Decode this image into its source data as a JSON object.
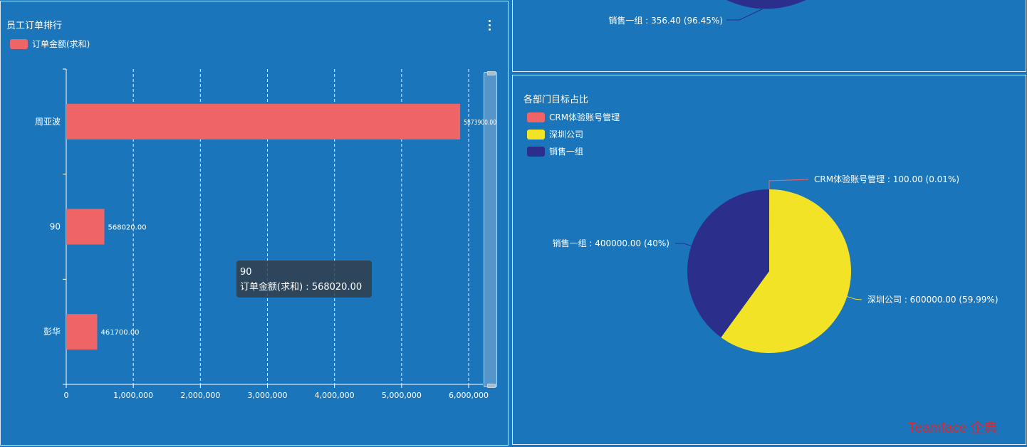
{
  "watermark": "Teamface 企典",
  "bar_panel": {
    "title": "员工订单排行",
    "legend_label": "订单金额(求和)",
    "legend_color": "#ef6567",
    "tooltip": {
      "name": "90",
      "series": "订单金额(求和)",
      "value_text": "568020.00"
    }
  },
  "pie_panel": {
    "title": "各部门目标占比",
    "legend": [
      {
        "label": "CRM体验账号管理",
        "color": "#ef6567"
      },
      {
        "label": "深圳公司",
        "color": "#f2e326"
      },
      {
        "label": "销售一组",
        "color": "#2b2e8b"
      }
    ]
  },
  "top_pie_panel": {
    "visible_label": "销售一组 : 356.40 (96.45%)",
    "color": "#2b2e8b"
  },
  "chart_data": [
    {
      "type": "bar",
      "orientation": "horizontal",
      "title": "员工订单排行",
      "categories": [
        "周亚波",
        "90",
        "彭华"
      ],
      "series": [
        {
          "name": "订单金额(求和)",
          "values": [
            5873900.0,
            568020.0,
            461700.0
          ],
          "color": "#ef6567"
        }
      ],
      "data_labels": [
        "5873900.00",
        "568020.00",
        "461700.00"
      ],
      "xlim": [
        0,
        6000000
      ],
      "x_ticks": [
        0,
        1000000,
        2000000,
        3000000,
        4000000,
        5000000,
        6000000
      ],
      "x_tick_labels": [
        "0",
        "1,000,000",
        "2,000,000",
        "3,000,000",
        "4,000,000",
        "5,000,000",
        "6,000,000"
      ],
      "grid": true,
      "legend_position": "top-left"
    },
    {
      "type": "pie",
      "title": "各部门目标占比",
      "slices": [
        {
          "name": "CRM体验账号管理",
          "value": 100.0,
          "percent": 0.01,
          "color": "#ef6567",
          "label": "CRM体验账号管理 : 100.00 (0.01%)"
        },
        {
          "name": "深圳公司",
          "value": 600000.0,
          "percent": 59.99,
          "color": "#f2e326",
          "label": "深圳公司 : 600000.00 (59.99%)"
        },
        {
          "name": "销售一组",
          "value": 400000.0,
          "percent": 40,
          "color": "#2b2e8b",
          "label": "销售一组 : 400000.00 (40%)"
        }
      ],
      "legend_position": "top-left"
    }
  ]
}
